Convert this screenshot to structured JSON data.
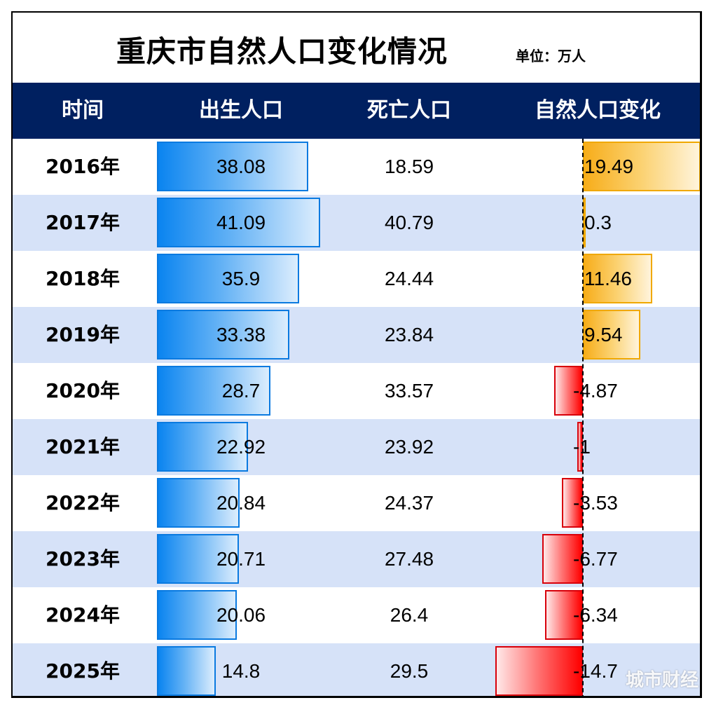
{
  "title": "重庆市自然人口变化情况",
  "unit": "单位：万人",
  "headers": [
    "时间",
    "出生人口",
    "死亡人口",
    "自然人口变化"
  ],
  "watermark": "城市财经",
  "colors": {
    "header_bg": "#002060",
    "alt_row": "#d6e2f8",
    "birth_bar": "#0a84f0",
    "positive_bar": "#f7ad1a",
    "negative_bar": "#ff0000"
  },
  "chart_data": {
    "type": "table",
    "title": "重庆市自然人口变化情况",
    "unit": "万人",
    "columns": [
      "时间",
      "出生人口",
      "死亡人口",
      "自然人口变化"
    ],
    "rows": [
      {
        "year": "2016年",
        "birth": "38.08",
        "death": "18.59",
        "change": "19.49"
      },
      {
        "year": "2017年",
        "birth": "41.09",
        "death": "40.79",
        "change": "0.3"
      },
      {
        "year": "2018年",
        "birth": "35.9",
        "death": "24.44",
        "change": "11.46"
      },
      {
        "year": "2019年",
        "birth": "33.38",
        "death": "23.84",
        "change": "9.54"
      },
      {
        "year": "2020年",
        "birth": "28.7",
        "death": "33.57",
        "change": "-4.87"
      },
      {
        "year": "2021年",
        "birth": "22.92",
        "death": "23.92",
        "change": "-1"
      },
      {
        "year": "2022年",
        "birth": "20.84",
        "death": "24.37",
        "change": "-3.53"
      },
      {
        "year": "2023年",
        "birth": "20.71",
        "death": "27.48",
        "change": "-6.77"
      },
      {
        "year": "2024年",
        "birth": "20.06",
        "death": "26.4",
        "change": "-6.34"
      },
      {
        "year": "2025年",
        "birth": "14.8",
        "death": "29.5",
        "change": "-14.7"
      }
    ]
  }
}
